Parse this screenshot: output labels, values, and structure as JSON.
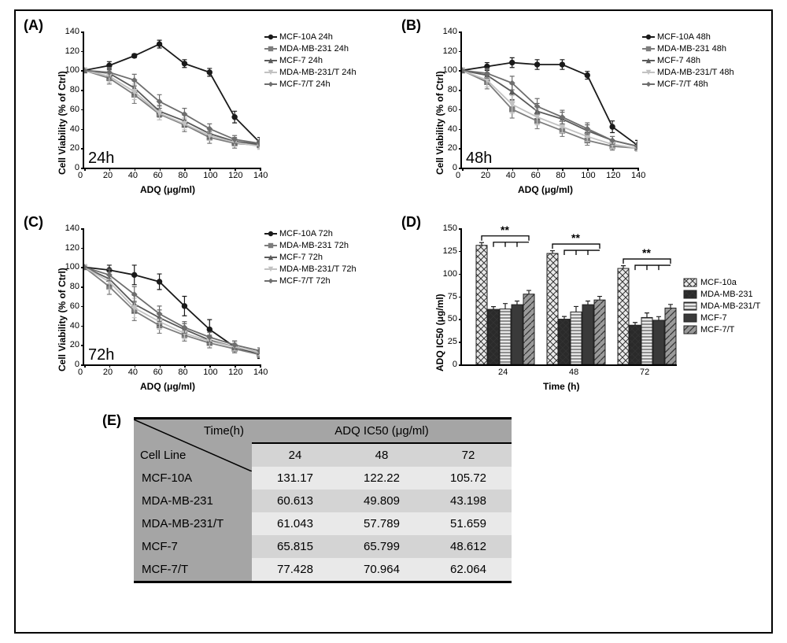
{
  "panels": {
    "A": {
      "label": "(A)",
      "inset": "24h"
    },
    "B": {
      "label": "(B)",
      "inset": "48h"
    },
    "C": {
      "label": "(C)",
      "inset": "72h"
    },
    "D": {
      "label": "(D)"
    },
    "E": {
      "label": "(E)"
    }
  },
  "axes": {
    "line": {
      "ylabel": "Cell Viability (% of Ctrl)",
      "xlabel": "ADQ (μg/ml)",
      "ylim": [
        0,
        140
      ],
      "ytick_step": 20,
      "xlim": [
        0,
        140
      ],
      "xtick_step": 20
    },
    "bar": {
      "ylabel": "ADQ IC50 (μg/ml)",
      "xlabel": "Time (h)",
      "ylim": [
        0,
        150
      ],
      "ytick_step": 25,
      "categories": [
        "24",
        "48",
        "72"
      ]
    }
  },
  "series_meta": {
    "MCF-10A": {
      "color": "#1a1a1a",
      "marker": "circle"
    },
    "MDA-MB-231": {
      "color": "#7d7d7d",
      "marker": "square"
    },
    "MCF-7": {
      "color": "#5a5a5a",
      "marker": "triangle"
    },
    "MDA-MB-231/T": {
      "color": "#c2c2c2",
      "marker": "tri-down"
    },
    "MCF-7/T": {
      "color": "#6e6e6e",
      "marker": "diamond"
    }
  },
  "legend_order_line": [
    "MCF-10A",
    "MDA-MB-231",
    "MCF-7",
    "MDA-MB-231/T",
    "MCF-7/T"
  ],
  "legend_suffix": {
    "A": " 24h",
    "B": " 48h",
    "C": " 72h"
  },
  "bar_series_meta": {
    "MCF-10a": {
      "fill": "#eaeaea",
      "pattern": "cross"
    },
    "MDA-MB-231": {
      "fill": "#2a2a2a",
      "pattern": "cross"
    },
    "MDA-MB-231/T": {
      "fill": "#e8e8e8",
      "pattern": "hstripe"
    },
    "MCF-7": {
      "fill": "#3a3a3a",
      "pattern": "solid"
    },
    "MCF-7/T": {
      "fill": "#9a9a9a",
      "pattern": "diag"
    }
  },
  "legend_order_bar": [
    "MCF-10a",
    "MDA-MB-231",
    "MDA-MB-231/T",
    "MCF-7",
    "MCF-7/T"
  ],
  "x_values": [
    0,
    20,
    40,
    60,
    80,
    100,
    120,
    140
  ],
  "viability": {
    "A": {
      "MCF-10A": {
        "y": [
          100,
          105,
          115,
          127,
          107,
          98,
          52,
          26
        ],
        "e": [
          0,
          4,
          2,
          4,
          4,
          4,
          6,
          5
        ]
      },
      "MDA-MB-231": {
        "y": [
          100,
          92,
          75,
          55,
          44,
          31,
          25,
          23
        ],
        "e": [
          0,
          6,
          9,
          6,
          7,
          6,
          5,
          4
        ]
      },
      "MCF-7": {
        "y": [
          100,
          97,
          82,
          58,
          48,
          35,
          27,
          24
        ],
        "e": [
          0,
          5,
          7,
          6,
          6,
          5,
          4,
          3
        ]
      },
      "MDA-MB-231/T": {
        "y": [
          100,
          94,
          78,
          56,
          45,
          33,
          26,
          22
        ],
        "e": [
          0,
          6,
          8,
          7,
          6,
          5,
          4,
          3
        ]
      },
      "MCF-7/T": {
        "y": [
          100,
          98,
          90,
          68,
          55,
          40,
          29,
          25
        ],
        "e": [
          0,
          5,
          6,
          7,
          6,
          5,
          4,
          3
        ]
      }
    },
    "B": {
      "MCF-10A": {
        "y": [
          100,
          104,
          108,
          106,
          106,
          95,
          42,
          23
        ],
        "e": [
          0,
          4,
          5,
          5,
          5,
          4,
          6,
          5
        ]
      },
      "MDA-MB-231": {
        "y": [
          100,
          88,
          60,
          48,
          38,
          28,
          22,
          20
        ],
        "e": [
          0,
          7,
          9,
          8,
          6,
          5,
          4,
          3
        ]
      },
      "MCF-7": {
        "y": [
          100,
          95,
          78,
          58,
          50,
          38,
          28,
          22
        ],
        "e": [
          0,
          6,
          8,
          8,
          7,
          6,
          4,
          3
        ]
      },
      "MDA-MB-231/T": {
        "y": [
          100,
          90,
          65,
          52,
          42,
          32,
          24,
          20
        ],
        "e": [
          0,
          7,
          9,
          8,
          6,
          5,
          4,
          3
        ]
      },
      "MCF-7/T": {
        "y": [
          100,
          97,
          87,
          63,
          52,
          40,
          28,
          22
        ],
        "e": [
          0,
          5,
          7,
          8,
          7,
          6,
          4,
          3
        ]
      }
    },
    "C": {
      "MCF-10A": {
        "y": [
          100,
          97,
          92,
          85,
          60,
          36,
          18,
          10
        ],
        "e": [
          0,
          5,
          10,
          8,
          10,
          10,
          6,
          4
        ]
      },
      "MDA-MB-231": {
        "y": [
          100,
          80,
          55,
          40,
          30,
          22,
          16,
          10
        ],
        "e": [
          0,
          8,
          10,
          8,
          6,
          5,
          4,
          3
        ]
      },
      "MCF-7": {
        "y": [
          100,
          88,
          62,
          48,
          36,
          25,
          18,
          12
        ],
        "e": [
          0,
          7,
          9,
          8,
          6,
          5,
          4,
          3
        ]
      },
      "MDA-MB-231/T": {
        "y": [
          100,
          85,
          58,
          44,
          32,
          24,
          18,
          12
        ],
        "e": [
          0,
          8,
          10,
          8,
          6,
          5,
          4,
          3
        ]
      },
      "MCF-7/T": {
        "y": [
          100,
          92,
          72,
          52,
          38,
          28,
          20,
          14
        ],
        "e": [
          0,
          6,
          8,
          8,
          6,
          5,
          4,
          3
        ]
      }
    }
  },
  "ic50": {
    "table_header_diag": {
      "top": "Time(h)",
      "bottom": "Cell Line",
      "merged_title": "ADQ IC50 (μg/ml)"
    },
    "columns": [
      "24",
      "48",
      "72"
    ],
    "rows": [
      {
        "label": "MCF-10A",
        "vals": [
          "131.17",
          "122.22",
          "105.72"
        ]
      },
      {
        "label": "MDA-MB-231",
        "vals": [
          "60.613",
          "49.809",
          "43.198"
        ]
      },
      {
        "label": "MDA-MB-231/T",
        "vals": [
          "61.043",
          "57.789",
          "51.659"
        ]
      },
      {
        "label": "MCF-7",
        "vals": [
          "65.815",
          "65.799",
          "48.612"
        ]
      },
      {
        "label": "MCF-7/T",
        "vals": [
          "77.428",
          "70.964",
          "62.064"
        ]
      }
    ],
    "numeric": {
      "24": {
        "MCF-10a": 131.17,
        "MDA-MB-231": 60.613,
        "MDA-MB-231/T": 61.043,
        "MCF-7": 65.815,
        "MCF-7/T": 77.428
      },
      "48": {
        "MCF-10a": 122.22,
        "MDA-MB-231": 49.809,
        "MDA-MB-231/T": 57.789,
        "MCF-7": 65.799,
        "MCF-7/T": 70.964
      },
      "72": {
        "MCF-10a": 105.72,
        "MDA-MB-231": 43.198,
        "MDA-MB-231/T": 51.659,
        "MCF-7": 48.612,
        "MCF-7/T": 62.064
      }
    },
    "err": {
      "24": {
        "MCF-10a": 3,
        "MDA-MB-231": 3,
        "MDA-MB-231/T": 6,
        "MCF-7": 4,
        "MCF-7/T": 4
      },
      "48": {
        "MCF-10a": 3,
        "MDA-MB-231": 3,
        "MDA-MB-231/T": 6,
        "MCF-7": 4,
        "MCF-7/T": 4
      },
      "72": {
        "MCF-10a": 3,
        "MDA-MB-231": 3,
        "MDA-MB-231/T": 5,
        "MCF-7": 4,
        "MCF-7/T": 4
      }
    }
  },
  "sig_label": "**"
}
